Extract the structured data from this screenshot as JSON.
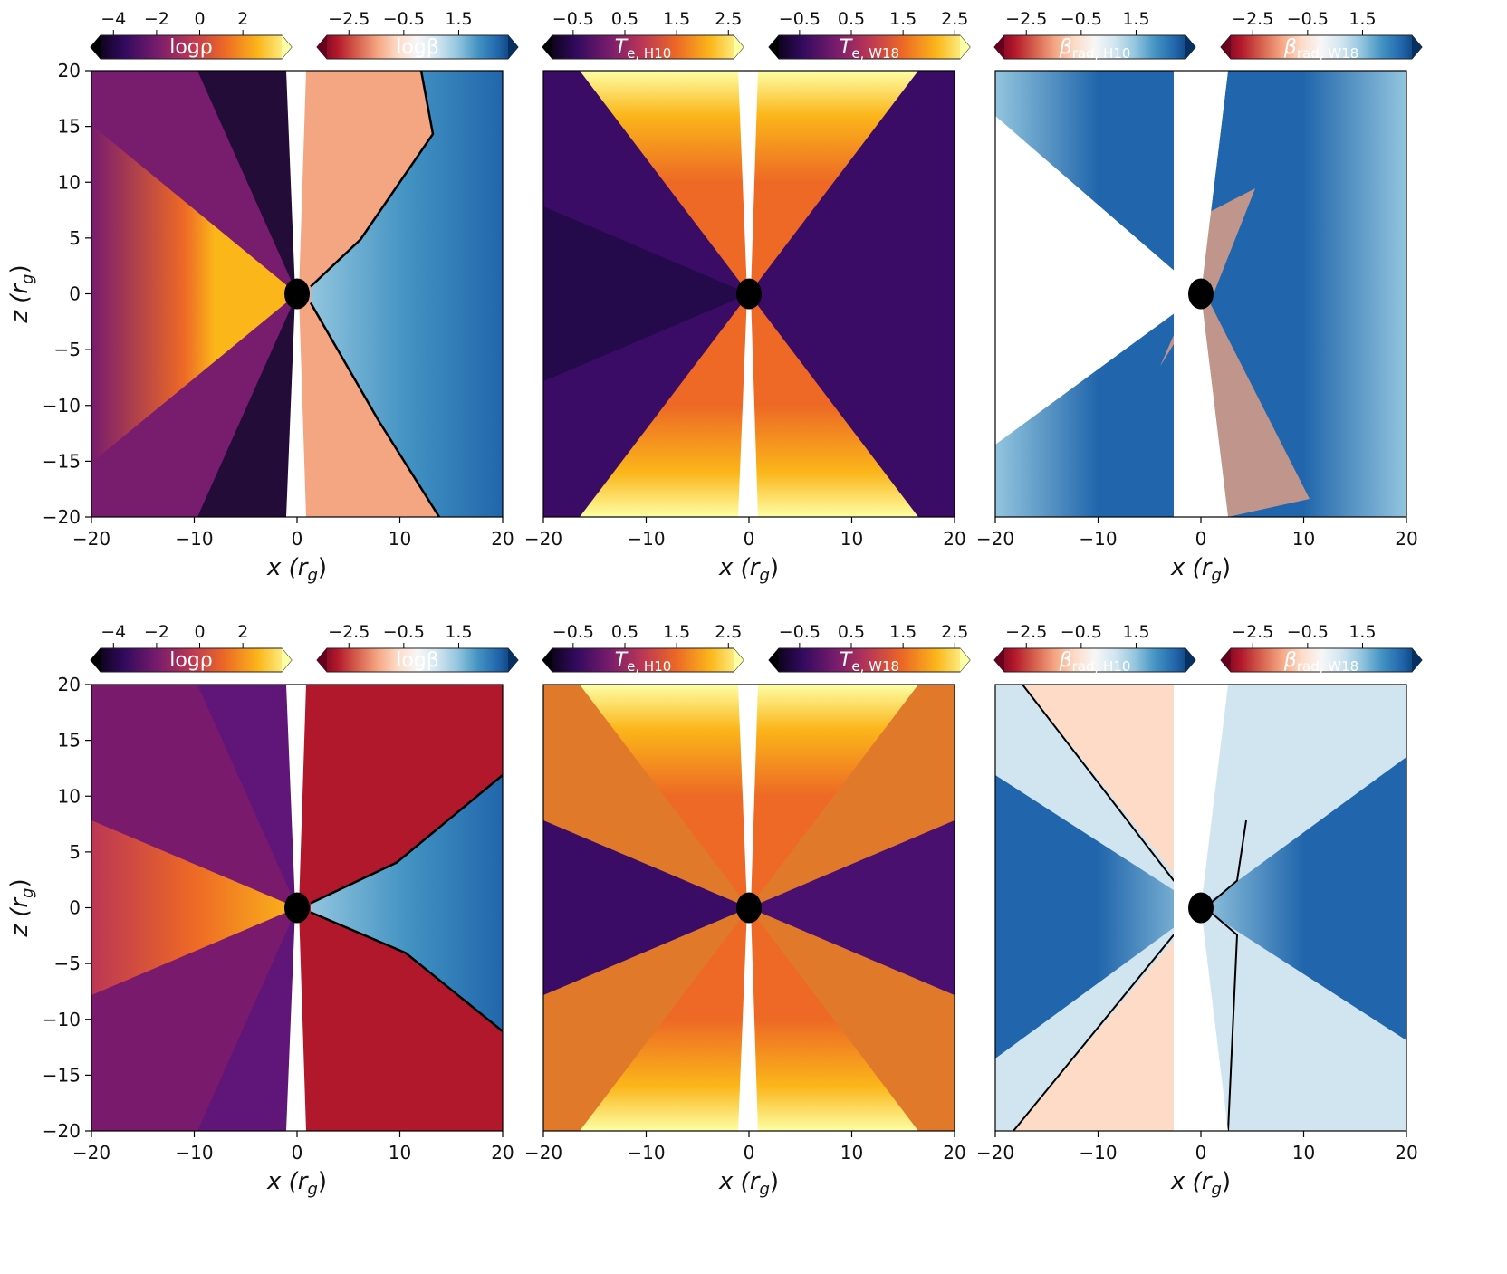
{
  "figure": {
    "description_free": true,
    "rows": [
      {
        "panels": [
          {
            "id": "density-beta",
            "colorbars": [
              {
                "label": "logρ",
                "cmap": "inferno",
                "ticks": [
                  -4,
                  -2,
                  0,
                  2
                ],
                "range": [
                  -4.6,
                  3.8
                ]
              },
              {
                "label": "logβ",
                "cmap": "rdbu",
                "ticks": [
                  -2.5,
                  -0.5,
                  1.5
                ],
                "range": [
                  -3.3,
                  3.3
                ]
              }
            ]
          },
          {
            "id": "electron-temperature",
            "colorbars": [
              {
                "label": "T_e,H10",
                "label_main": "T",
                "label_sub": "e, H10",
                "cmap": "inferno",
                "ticks": [
                  -0.5,
                  0.5,
                  1.5,
                  2.5
                ],
                "range": [
                  -0.9,
                  2.6
                ]
              },
              {
                "label": "T_e,W18",
                "label_main": "T",
                "label_sub": "e, W18",
                "cmap": "inferno",
                "ticks": [
                  -0.5,
                  0.5,
                  1.5,
                  2.5
                ],
                "range": [
                  -0.9,
                  2.6
                ]
              }
            ]
          },
          {
            "id": "radiation-beta",
            "colorbars": [
              {
                "label": "β_rad,H10",
                "label_main": "β",
                "label_sub": "rad, H10",
                "cmap": "rdbu",
                "ticks": [
                  -2.5,
                  -0.5,
                  1.5
                ],
                "range": [
                  -3.3,
                  3.3
                ]
              },
              {
                "label": "β_rad,W18",
                "label_main": "β",
                "label_sub": "rad, W18",
                "cmap": "rdbu",
                "ticks": [
                  -2.5,
                  -0.5,
                  1.5
                ],
                "range": [
                  -3.3,
                  3.3
                ]
              }
            ]
          }
        ]
      },
      {
        "panels": [
          {
            "id": "density-beta-2",
            "colorbars": [
              {
                "label": "logρ",
                "cmap": "inferno",
                "ticks": [
                  -4,
                  -2,
                  0,
                  2
                ],
                "range": [
                  -4.6,
                  3.8
                ]
              },
              {
                "label": "logβ",
                "cmap": "rdbu",
                "ticks": [
                  -2.5,
                  -0.5,
                  1.5
                ],
                "range": [
                  -3.3,
                  3.3
                ]
              }
            ]
          },
          {
            "id": "electron-temperature-2",
            "colorbars": [
              {
                "label": "T_e,H10",
                "label_main": "T",
                "label_sub": "e, H10",
                "cmap": "inferno",
                "ticks": [
                  -0.5,
                  0.5,
                  1.5,
                  2.5
                ],
                "range": [
                  -0.9,
                  2.6
                ]
              },
              {
                "label": "T_e,W18",
                "label_main": "T",
                "label_sub": "e, W18",
                "cmap": "inferno",
                "ticks": [
                  -0.5,
                  0.5,
                  1.5,
                  2.5
                ],
                "range": [
                  -0.9,
                  2.6
                ]
              }
            ]
          },
          {
            "id": "radiation-beta-2",
            "colorbars": [
              {
                "label": "β_rad,H10",
                "label_main": "β",
                "label_sub": "rad, H10",
                "cmap": "rdbu",
                "ticks": [
                  -2.5,
                  -0.5,
                  1.5
                ],
                "range": [
                  -3.3,
                  3.3
                ]
              },
              {
                "label": "β_rad,W18",
                "label_main": "β",
                "label_sub": "rad, W18",
                "cmap": "rdbu",
                "ticks": [
                  -2.5,
                  -0.5,
                  1.5
                ],
                "range": [
                  -3.3,
                  3.3
                ]
              }
            ]
          }
        ]
      }
    ]
  },
  "chart_data": {
    "type": "heatmap",
    "layout": "2 rows x 3 columns of x-z slice maps",
    "xlabel_main": "x",
    "xlabel_unit": "r",
    "xlabel_unit_sub": "g",
    "ylabel_main": "z",
    "ylabel_unit": "r",
    "ylabel_unit_sub": "g",
    "xlim": [
      -20,
      20
    ],
    "ylim": [
      -20,
      20
    ],
    "xticks": [
      -20,
      -10,
      0,
      10,
      20
    ],
    "yticks": [
      -20,
      -15,
      -10,
      -5,
      0,
      5,
      10,
      15,
      20
    ],
    "xtick_labels": [
      "−20",
      "−10",
      "0",
      "10",
      "20"
    ],
    "ytick_labels": [
      "−20",
      "−15",
      "−10",
      "−5",
      "0",
      "5",
      "10",
      "15",
      "20"
    ],
    "black_hole_center": [
      0,
      0
    ],
    "colormaps": {
      "inferno": [
        "#000004",
        "#320a5e",
        "#781c6d",
        "#bc3754",
        "#ed6925",
        "#fbb61a",
        "#fcffa4"
      ],
      "rdbu": [
        "#67001f",
        "#b2182b",
        "#d6604d",
        "#f4a582",
        "#fddbc7",
        "#f7f7f7",
        "#d1e5f0",
        "#92c5de",
        "#4393c3",
        "#2166ac",
        "#053061"
      ]
    }
  }
}
